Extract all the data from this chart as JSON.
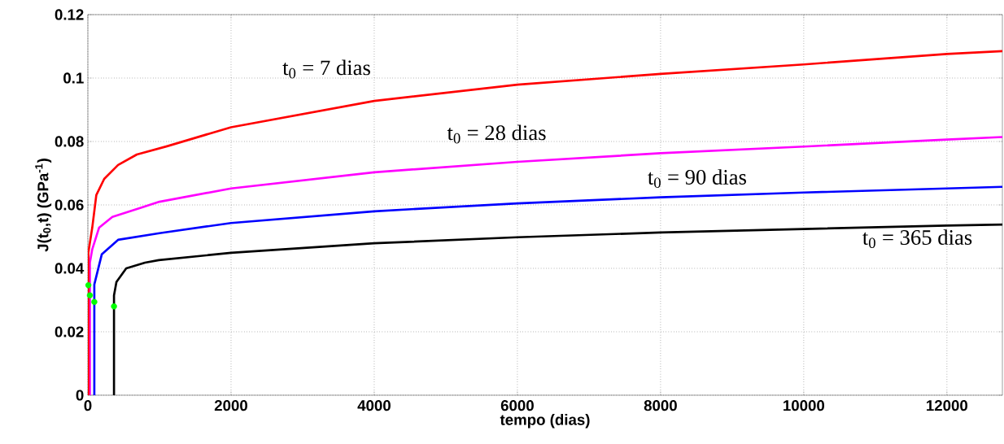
{
  "chart_data": {
    "type": "line",
    "xlabel": "tempo  (dias)",
    "ylabel": "J(t$_{0}$,t)  (GPa$^{-1}$)",
    "xlim": [
      0,
      12775
    ],
    "ylim": [
      0,
      0.12
    ],
    "xticks": [
      0,
      2000,
      4000,
      6000,
      8000,
      10000,
      12000
    ],
    "yticks": [
      0,
      0.02,
      0.04,
      0.06,
      0.08,
      0.1,
      0.12
    ],
    "grid": true,
    "line_style": "solid",
    "series": [
      {
        "name": "t$_{0}$ = 7 dias",
        "color": "#ff0000",
        "x": [
          7,
          7,
          61,
          118,
          228,
          422,
          684,
          1105,
          2000,
          4000,
          6000,
          8000,
          10000,
          12000,
          12775
        ],
        "values": [
          0,
          0.045,
          0.0528,
          0.0631,
          0.0682,
          0.0726,
          0.0759,
          0.0785,
          0.0845,
          0.0928,
          0.0979,
          0.1013,
          0.1043,
          0.1076,
          0.1085
        ]
      },
      {
        "name": "t$_{0}$ = 28 dias",
        "color": "#ff00ff",
        "x": [
          28,
          28,
          61,
          156,
          342,
          1000,
          2000,
          4000,
          6000,
          8000,
          10000,
          12000,
          12775
        ],
        "values": [
          0,
          0.0418,
          0.046,
          0.0528,
          0.0562,
          0.061,
          0.0652,
          0.0703,
          0.0736,
          0.0763,
          0.0784,
          0.0806,
          0.0814
        ]
      },
      {
        "name": "t$_{0}$ = 90 dias",
        "color": "#0000ff",
        "x": [
          90,
          90,
          194,
          422,
          1000,
          2000,
          4000,
          6000,
          8000,
          10000,
          12000,
          12775
        ],
        "values": [
          0,
          0.0349,
          0.0444,
          0.049,
          0.0511,
          0.0543,
          0.058,
          0.0605,
          0.0624,
          0.0639,
          0.0652,
          0.0657
        ]
      },
      {
        "name": "t$_{0}$ = 365 dias",
        "color": "#000000",
        "x": [
          365,
          365,
          399,
          536,
          798,
          991,
          2000,
          4000,
          6000,
          8000,
          10000,
          12000,
          12775
        ],
        "values": [
          0,
          0.0315,
          0.0357,
          0.04,
          0.0418,
          0.0426,
          0.0449,
          0.0479,
          0.0498,
          0.0513,
          0.0524,
          0.0535,
          0.0538
        ]
      },
      {
        "type": "scatter",
        "color": "#00ff00",
        "x": [
          7,
          28,
          90,
          365
        ],
        "values": [
          0.0347,
          0.0315,
          0.0294,
          0.028
        ]
      }
    ]
  }
}
